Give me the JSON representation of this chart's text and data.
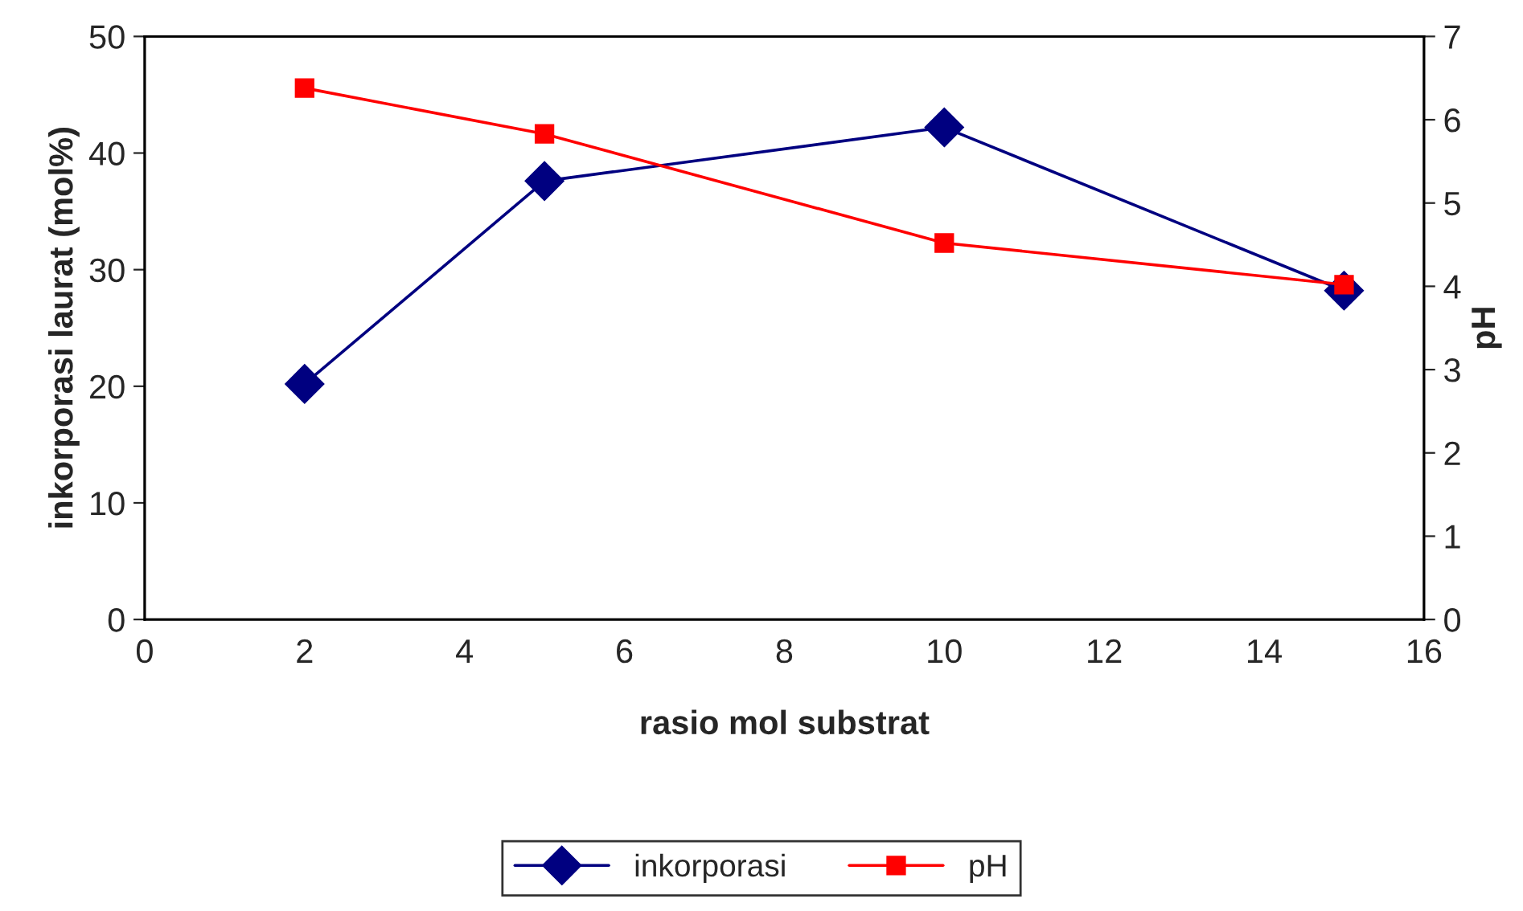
{
  "chart_data": {
    "type": "line",
    "xlabel": "rasio mol substrat",
    "ylabel": "inkorporasi laurat (mol%)",
    "y2label": "pH",
    "x": [
      2,
      5,
      10,
      15
    ],
    "series": [
      {
        "name": "inkorporasi",
        "color": "#000080",
        "values": [
          20.2,
          37.6,
          42.2,
          28.2
        ],
        "marker": "diamond"
      },
      {
        "name": "pH",
        "color": "#ff0000",
        "values": [
          6.38,
          5.83,
          4.52,
          4.02
        ],
        "axis": "y2",
        "marker": "square"
      }
    ],
    "xlim": [
      0,
      16
    ],
    "xticks": [
      0,
      2,
      4,
      6,
      8,
      10,
      12,
      14,
      16
    ],
    "ylim": [
      0,
      50
    ],
    "yticks": [
      0,
      10,
      20,
      30,
      40,
      50
    ],
    "y2lim": [
      0,
      7
    ],
    "y2ticks": [
      0,
      1,
      2,
      3,
      4,
      5,
      6,
      7
    ],
    "grid": false,
    "legend": "bottom",
    "line_style": "solid"
  }
}
